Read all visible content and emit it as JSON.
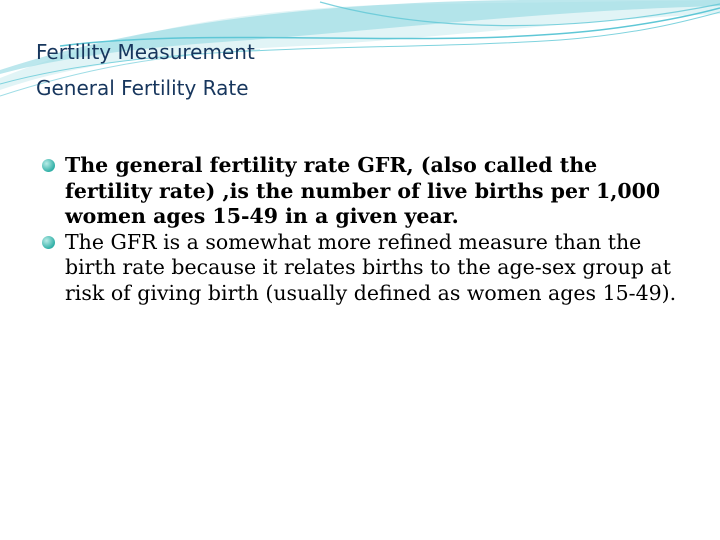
{
  "title": {
    "line1": "Fertility Measurement",
    "line2": "General Fertility Rate"
  },
  "bullets": [
    {
      "text": "The general fertility rate GFR, (also called the fertility rate) ,is the number of live births per 1,000 women ages 15-49 in a given year.",
      "bold": true
    },
    {
      "text": "The GFR is a somewhat more refined measure than the birth rate because it relates births to the age-sex group at risk of giving birth (usually defined as women ages 15-49).",
      "bold": false
    }
  ],
  "colors": {
    "title": "#17365d",
    "bullet": "#31b0a7",
    "swoosh": "#5fc7d6"
  }
}
